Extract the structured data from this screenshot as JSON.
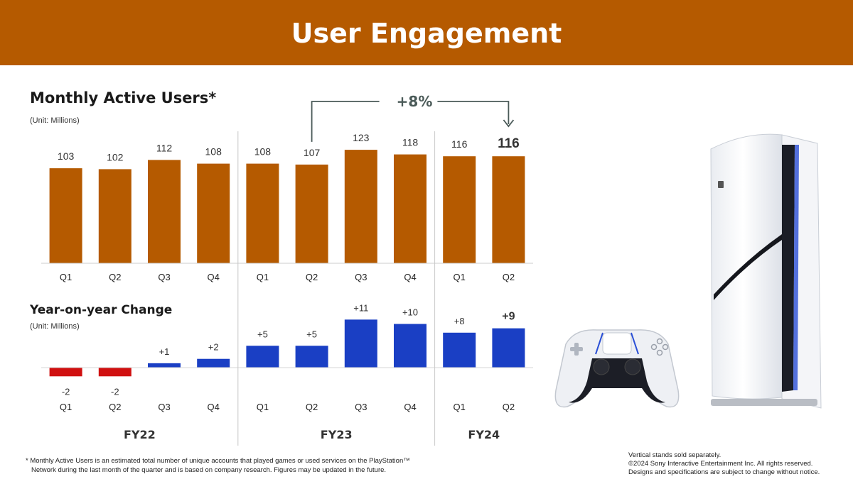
{
  "header": {
    "title": "User Engagement"
  },
  "mau_section": {
    "title": "Monthly Active Users*",
    "unit": "(Unit: Millions)"
  },
  "yoy_section": {
    "title": "Year-on-year Change",
    "unit": "(Unit: Millions)"
  },
  "growth_annotation": {
    "label": "+8%"
  },
  "fiscal_years": [
    "FY22",
    "FY23",
    "FY24"
  ],
  "footnote": {
    "line1": "* Monthly Active Users is an estimated total number of unique accounts that played games or used services on the PlayStation™",
    "line2": "Network during the last month of the quarter and is based on company research. Figures may be updated in the future."
  },
  "legal": {
    "line1": "Vertical stands sold separately.",
    "line2": "©2024 Sony Interactive Entertainment Inc. All rights reserved.",
    "line3": "Designs and specifications are subject to change without notice."
  },
  "products": {
    "console": "PS5 console",
    "controller": "DualSense controller"
  },
  "colors": {
    "header": "#b55a00",
    "mau_bar": "#b55a00",
    "positive": "#1a3fc4",
    "negative": "#d01010"
  },
  "chart_data": [
    {
      "type": "bar",
      "title": "Monthly Active Users*",
      "unit": "(Unit: Millions)",
      "categories": [
        "Q1",
        "Q2",
        "Q3",
        "Q4",
        "Q1",
        "Q2",
        "Q3",
        "Q4",
        "Q1",
        "Q2"
      ],
      "groups": [
        {
          "label": "FY22",
          "count": 4
        },
        {
          "label": "FY23",
          "count": 4
        },
        {
          "label": "FY24",
          "count": 2
        }
      ],
      "values": [
        103,
        102,
        112,
        108,
        108,
        107,
        123,
        118,
        116,
        116
      ],
      "value_labels": [
        "103",
        "102",
        "112",
        "108",
        "108",
        "107",
        "123",
        "118",
        "116",
        "116"
      ],
      "highlight_index": 9,
      "annotation": {
        "label": "+8%",
        "from_index": 5,
        "to_index": 9
      },
      "ylim": [
        0,
        123
      ]
    },
    {
      "type": "bar",
      "title": "Year-on-year Change",
      "unit": "(Unit: Millions)",
      "categories": [
        "Q1",
        "Q2",
        "Q3",
        "Q4",
        "Q1",
        "Q2",
        "Q3",
        "Q4",
        "Q1",
        "Q2"
      ],
      "values": [
        -2,
        -2,
        1,
        2,
        5,
        5,
        11,
        10,
        8,
        9
      ],
      "value_labels": [
        "-2",
        "-2",
        "+1",
        "+2",
        "+5",
        "+5",
        "+11",
        "+10",
        "+8",
        "+9"
      ],
      "highlight_index": 9,
      "ylim": [
        -2,
        11
      ]
    }
  ]
}
